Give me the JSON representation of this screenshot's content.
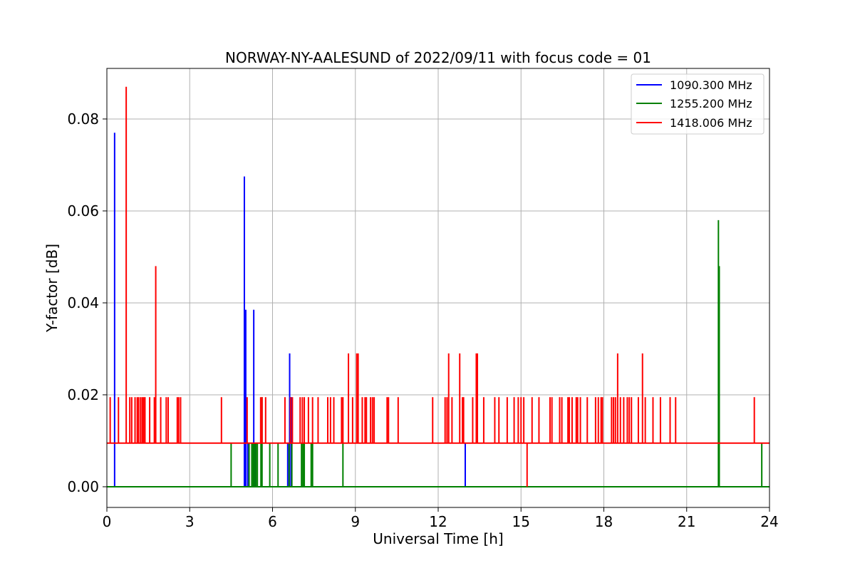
{
  "chart_data": {
    "type": "line",
    "title": "NORWAY-NY-AALESUND of 2022/09/11 with focus code = 01",
    "xlabel": "Universal Time [h]",
    "ylabel": "Y-factor [dB]",
    "xlim": [
      0,
      24
    ],
    "ylim": [
      -0.0045,
      0.091
    ],
    "xticks": [
      0,
      3,
      6,
      9,
      12,
      15,
      18,
      21,
      24
    ],
    "xtick_labels": [
      "0",
      "3",
      "6",
      "9",
      "12",
      "15",
      "18",
      "21",
      "24"
    ],
    "yticks": [
      0.0,
      0.02,
      0.04,
      0.06,
      0.08
    ],
    "ytick_labels": [
      "0.00",
      "0.02",
      "0.04",
      "0.06",
      "0.08"
    ],
    "grid": true,
    "legend_position": "top-right",
    "series": [
      {
        "name": "1090.300 MHz",
        "color": "#0000ff",
        "baseline": 0.0,
        "spikes": [
          [
            0.28,
            0.077
          ],
          [
            4.98,
            0.0675
          ],
          [
            5.03,
            0.0385
          ],
          [
            5.1,
            0.0095
          ],
          [
            5.32,
            0.0385
          ],
          [
            5.37,
            0.0095
          ],
          [
            6.55,
            0.0095
          ],
          [
            6.62,
            0.029
          ],
          [
            6.68,
            0.0195
          ],
          [
            12.98,
            0.0095
          ]
        ]
      },
      {
        "name": "1255.200 MHz",
        "color": "#008000",
        "baseline": 0.0,
        "spikes": [
          [
            4.5,
            0.0095
          ],
          [
            5.15,
            0.0095
          ],
          [
            5.25,
            0.0095
          ],
          [
            5.3,
            0.0095
          ],
          [
            5.35,
            0.0095
          ],
          [
            5.4,
            0.0095
          ],
          [
            5.45,
            0.0095
          ],
          [
            5.58,
            0.0095
          ],
          [
            5.62,
            0.0195
          ],
          [
            5.9,
            0.0095
          ],
          [
            6.2,
            0.0095
          ],
          [
            6.6,
            0.0095
          ],
          [
            6.7,
            0.0095
          ],
          [
            7.05,
            0.0095
          ],
          [
            7.1,
            0.0095
          ],
          [
            7.15,
            0.0095
          ],
          [
            7.4,
            0.0095
          ],
          [
            7.45,
            0.0095
          ],
          [
            8.55,
            0.0095
          ],
          [
            22.15,
            0.058
          ],
          [
            22.18,
            0.048
          ],
          [
            23.72,
            0.0095
          ]
        ]
      },
      {
        "name": "1418.006 MHz",
        "color": "#ff0000",
        "baseline": 0.0095,
        "spikes": [
          [
            0.12,
            0.0195
          ],
          [
            0.42,
            0.0195
          ],
          [
            0.7,
            0.087
          ],
          [
            0.83,
            0.0195
          ],
          [
            0.9,
            0.0195
          ],
          [
            1.02,
            0.0195
          ],
          [
            1.1,
            0.0195
          ],
          [
            1.15,
            0.0195
          ],
          [
            1.22,
            0.0195
          ],
          [
            1.28,
            0.0195
          ],
          [
            1.33,
            0.0195
          ],
          [
            1.38,
            0.0195
          ],
          [
            1.55,
            0.0195
          ],
          [
            1.72,
            0.0195
          ],
          [
            1.77,
            0.048
          ],
          [
            1.95,
            0.0195
          ],
          [
            2.15,
            0.0195
          ],
          [
            2.22,
            0.0195
          ],
          [
            2.55,
            0.0195
          ],
          [
            2.6,
            0.0195
          ],
          [
            2.67,
            0.0195
          ],
          [
            4.15,
            0.0195
          ],
          [
            5.08,
            0.0195
          ],
          [
            5.57,
            0.0195
          ],
          [
            5.62,
            0.0195
          ],
          [
            5.75,
            0.0195
          ],
          [
            6.45,
            0.0195
          ],
          [
            6.65,
            0.0195
          ],
          [
            6.72,
            0.0195
          ],
          [
            7.0,
            0.0195
          ],
          [
            7.08,
            0.0195
          ],
          [
            7.15,
            0.0195
          ],
          [
            7.3,
            0.0195
          ],
          [
            7.45,
            0.0195
          ],
          [
            7.65,
            0.0195
          ],
          [
            8.0,
            0.0195
          ],
          [
            8.1,
            0.0195
          ],
          [
            8.22,
            0.0195
          ],
          [
            8.5,
            0.0195
          ],
          [
            8.55,
            0.0195
          ],
          [
            8.75,
            0.029
          ],
          [
            8.9,
            0.0195
          ],
          [
            9.05,
            0.029
          ],
          [
            9.1,
            0.029
          ],
          [
            9.25,
            0.0195
          ],
          [
            9.35,
            0.0195
          ],
          [
            9.4,
            0.0195
          ],
          [
            9.55,
            0.0195
          ],
          [
            9.62,
            0.0195
          ],
          [
            9.68,
            0.0195
          ],
          [
            10.15,
            0.0195
          ],
          [
            10.2,
            0.0195
          ],
          [
            10.55,
            0.0195
          ],
          [
            11.8,
            0.0195
          ],
          [
            12.25,
            0.0195
          ],
          [
            12.32,
            0.0195
          ],
          [
            12.38,
            0.029
          ],
          [
            12.5,
            0.0195
          ],
          [
            12.78,
            0.029
          ],
          [
            12.88,
            0.0195
          ],
          [
            12.92,
            0.0195
          ],
          [
            13.25,
            0.0195
          ],
          [
            13.38,
            0.029
          ],
          [
            13.42,
            0.029
          ],
          [
            13.65,
            0.0195
          ],
          [
            14.05,
            0.0195
          ],
          [
            14.2,
            0.0195
          ],
          [
            14.5,
            0.0195
          ],
          [
            14.75,
            0.0195
          ],
          [
            14.9,
            0.0195
          ],
          [
            15.0,
            0.0195
          ],
          [
            15.1,
            0.0195
          ],
          [
            15.22,
            0.0
          ],
          [
            15.4,
            0.0195
          ],
          [
            15.65,
            0.0195
          ],
          [
            16.05,
            0.0195
          ],
          [
            16.12,
            0.0195
          ],
          [
            16.4,
            0.0195
          ],
          [
            16.48,
            0.0195
          ],
          [
            16.7,
            0.0195
          ],
          [
            16.75,
            0.0195
          ],
          [
            16.85,
            0.0195
          ],
          [
            17.0,
            0.0195
          ],
          [
            17.05,
            0.0195
          ],
          [
            17.15,
            0.0195
          ],
          [
            17.4,
            0.0195
          ],
          [
            17.7,
            0.0195
          ],
          [
            17.8,
            0.0195
          ],
          [
            17.9,
            0.0195
          ],
          [
            17.95,
            0.0195
          ],
          [
            18.28,
            0.0195
          ],
          [
            18.35,
            0.0195
          ],
          [
            18.42,
            0.0195
          ],
          [
            18.5,
            0.029
          ],
          [
            18.6,
            0.0195
          ],
          [
            18.72,
            0.0195
          ],
          [
            18.85,
            0.0195
          ],
          [
            18.92,
            0.0195
          ],
          [
            19.0,
            0.0195
          ],
          [
            19.25,
            0.0195
          ],
          [
            19.4,
            0.029
          ],
          [
            19.5,
            0.0195
          ],
          [
            19.78,
            0.0195
          ],
          [
            20.05,
            0.0195
          ],
          [
            20.4,
            0.0195
          ],
          [
            20.6,
            0.0195
          ],
          [
            23.45,
            0.0195
          ]
        ]
      }
    ]
  }
}
